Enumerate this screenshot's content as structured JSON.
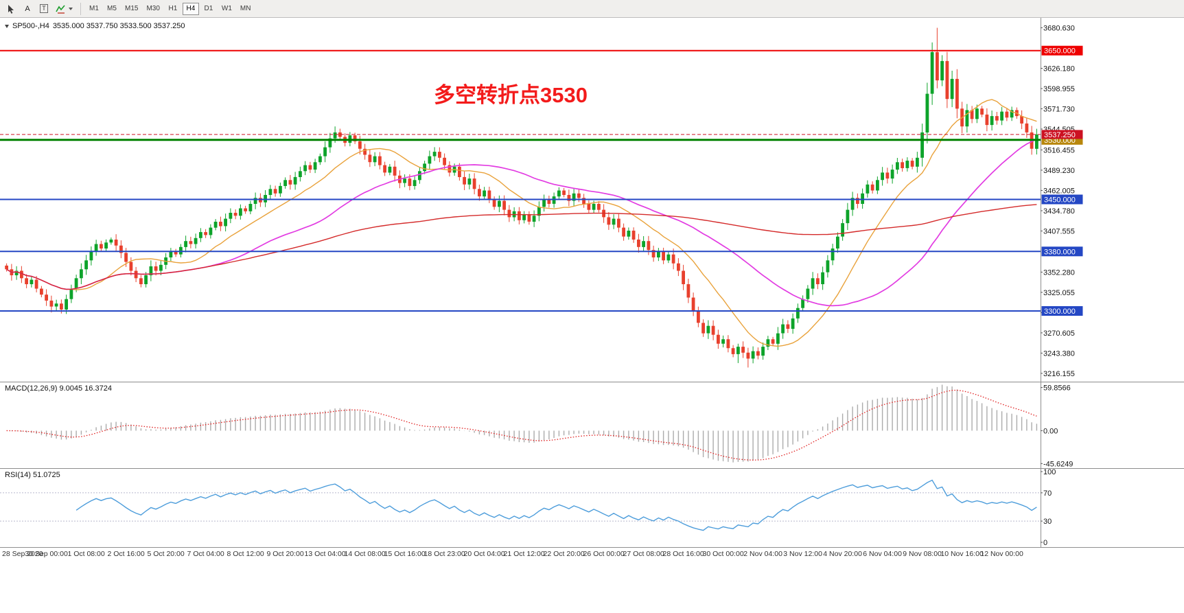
{
  "toolbar": {
    "tool_buttons": [
      {
        "name": "cursor-tool"
      },
      {
        "name": "text-tool",
        "label": "A"
      },
      {
        "name": "text-frame-tool",
        "label": "T"
      },
      {
        "name": "indicators-tool"
      }
    ],
    "timeframes": [
      "M1",
      "M5",
      "M15",
      "M30",
      "H1",
      "H4",
      "D1",
      "W1",
      "MN"
    ],
    "active_timeframe": "H4"
  },
  "chart_header": {
    "symbol": "SP500-,H4",
    "ohlc": "3535.000 3537.750 3533.500 3537.250"
  },
  "annotation": {
    "text": "多空转折点3530",
    "color": "#f31b1b"
  },
  "chart_data": {
    "type": "candlestick",
    "symbol": "SP500-",
    "timeframe": "H4",
    "up_color": "#0da32a",
    "down_color": "#e8402d",
    "price_axis": {
      "min": 3205,
      "max": 3694,
      "labels": [
        3680.63,
        3626.18,
        3598.955,
        3571.73,
        3544.505,
        3516.455,
        3489.23,
        3462.005,
        3434.78,
        3407.555,
        3352.28,
        3325.055,
        3297.83,
        3270.605,
        3243.38,
        3216.155
      ]
    },
    "closes": [
      3356,
      3348,
      3354,
      3344,
      3336,
      3342,
      3330,
      3322,
      3314,
      3306,
      3310,
      3302,
      3316,
      3330,
      3344,
      3356,
      3368,
      3380,
      3390,
      3384,
      3392,
      3396,
      3388,
      3378,
      3366,
      3354,
      3344,
      3336,
      3348,
      3360,
      3354,
      3362,
      3372,
      3380,
      3376,
      3386,
      3394,
      3390,
      3398,
      3406,
      3402,
      3412,
      3420,
      3414,
      3424,
      3432,
      3428,
      3438,
      3434,
      3444,
      3452,
      3446,
      3456,
      3464,
      3458,
      3468,
      3476,
      3470,
      3480,
      3488,
      3496,
      3490,
      3500,
      3508,
      3520,
      3532,
      3540,
      3534,
      3526,
      3536,
      3528,
      3518,
      3510,
      3500,
      3508,
      3496,
      3486,
      3494,
      3482,
      3472,
      3478,
      3468,
      3476,
      3488,
      3498,
      3508,
      3514,
      3506,
      3496,
      3486,
      3494,
      3480,
      3470,
      3478,
      3464,
      3454,
      3462,
      3450,
      3440,
      3448,
      3436,
      3426,
      3434,
      3422,
      3430,
      3420,
      3428,
      3440,
      3450,
      3444,
      3454,
      3462,
      3456,
      3448,
      3458,
      3452,
      3444,
      3436,
      3444,
      3436,
      3426,
      3416,
      3424,
      3412,
      3400,
      3408,
      3396,
      3386,
      3394,
      3382,
      3372,
      3380,
      3368,
      3376,
      3364,
      3354,
      3336,
      3318,
      3300,
      3284,
      3270,
      3280,
      3268,
      3256,
      3262,
      3250,
      3242,
      3252,
      3244,
      3236,
      3246,
      3240,
      3252,
      3262,
      3256,
      3270,
      3282,
      3276,
      3290,
      3304,
      3316,
      3330,
      3344,
      3336,
      3352,
      3368,
      3384,
      3400,
      3418,
      3436,
      3452,
      3444,
      3458,
      3470,
      3462,
      3476,
      3486,
      3478,
      3490,
      3500,
      3492,
      3502,
      3494,
      3506,
      3540,
      3592,
      3648,
      3610,
      3636,
      3585,
      3612,
      3572,
      3548,
      3570,
      3558,
      3572,
      3564,
      3550,
      3562,
      3556,
      3568,
      3560,
      3570,
      3562,
      3552,
      3540,
      3518,
      3537.25
    ],
    "wick_overrides": {
      "9": {
        "low": 3298
      },
      "66": {
        "high": 3548
      },
      "147": {
        "low": 3230
      },
      "149": {
        "low": 3224
      },
      "186": {
        "high": 3661
      },
      "187": {
        "high": 3680.63
      },
      "206": {
        "low": 3510
      }
    },
    "moving_averages": [
      {
        "period": 14,
        "color": "#e9a23b",
        "width": 1.4
      },
      {
        "period": 40,
        "color": "#e23ce2",
        "width": 1.7
      },
      {
        "period": 160,
        "color": "#d42a2a",
        "width": 1.4
      }
    ],
    "hlines": [
      {
        "price": 3650.0,
        "color": "#ee0000",
        "width": 2,
        "badge": "3650.000",
        "badge_color": "#ee0000"
      },
      {
        "price": 3530.0,
        "color": "#008000",
        "width": 3,
        "badge": "3530.000",
        "badge_color": "#b8860b"
      },
      {
        "price": 3450.0,
        "color": "#2447c4",
        "width": 2,
        "badge": "3450.000",
        "badge_color": "#2447c4"
      },
      {
        "price": 3380.0,
        "color": "#2447c4",
        "width": 2,
        "badge": "3380.000",
        "badge_color": "#2447c4"
      },
      {
        "price": 3300.0,
        "color": "#2447c4",
        "width": 2,
        "badge": "3300.000",
        "badge_color": "#2447c4"
      }
    ],
    "current_price": {
      "value": 3537.25,
      "badge": "3537.250",
      "color": "#cc1122"
    }
  },
  "macd": {
    "label": "MACD(12,26,9) 9.0045 16.3724",
    "fast": 12,
    "slow": 26,
    "signal": 9,
    "axis_labels": [
      "59.8566",
      "0.00",
      "-45.6249"
    ],
    "axis_values": [
      59.8566,
      0,
      -45.6249
    ],
    "range": [
      -52,
      68
    ],
    "hist_color": "#ababab",
    "signal_color": "#e02020"
  },
  "rsi": {
    "label": "RSI(14) 51.0725",
    "period": 14,
    "axis_labels": [
      "100",
      "70",
      "30",
      "0"
    ],
    "levels": [
      100,
      70,
      30,
      0
    ],
    "dashed_levels": [
      70,
      30
    ],
    "color": "#4d9ddb",
    "range": [
      0,
      100
    ]
  },
  "time_axis": {
    "bars_per_label": 8,
    "labels": [
      "28 Sep 2020",
      "30 Sep 00:00",
      "1 Oct 08:00",
      "2 Oct 16:00",
      "5 Oct 20:00",
      "7 Oct 04:00",
      "8 Oct 12:00",
      "9 Oct 20:00",
      "13 Oct 04:00",
      "14 Oct 08:00",
      "15 Oct 16:00",
      "18 Oct 23:00",
      "20 Oct 04:00",
      "21 Oct 12:00",
      "22 Oct 20:00",
      "26 Oct 00:00",
      "27 Oct 08:00",
      "28 Oct 16:00",
      "30 Oct 00:00",
      "2 Nov 04:00",
      "3 Nov 12:00",
      "4 Nov 20:00",
      "6 Nov 04:00",
      "9 Nov 08:00",
      "10 Nov 16:00",
      "12 Nov 00:00"
    ]
  }
}
